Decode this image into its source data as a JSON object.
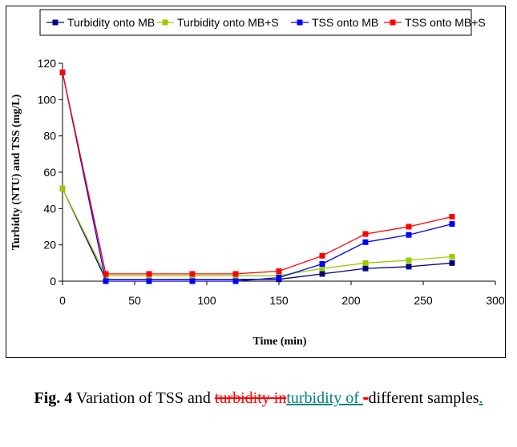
{
  "chart_data": {
    "type": "line",
    "title": "",
    "xlabel": "Time (min)",
    "ylabel": "Turbidty (NTU) and TSS (mg/L)",
    "xlim": [
      0,
      300
    ],
    "ylim": [
      0,
      120
    ],
    "xticks": [
      0,
      50,
      100,
      150,
      200,
      250,
      300
    ],
    "yticks": [
      0,
      20,
      40,
      60,
      80,
      100,
      120
    ],
    "grid": false,
    "legend_position": "top",
    "x": [
      0,
      30,
      60,
      90,
      120,
      150,
      180,
      210,
      240,
      270
    ],
    "series": [
      {
        "name": "Turbidity onto MB",
        "color": "#000080",
        "values": [
          51,
          1,
          1,
          1,
          1,
          1,
          4,
          7,
          8,
          10
        ]
      },
      {
        "name": "Turbidity onto MB+S",
        "color": "#99cc00",
        "values": [
          51,
          3,
          3,
          3,
          3,
          3,
          7,
          10,
          11.5,
          13.5
        ]
      },
      {
        "name": "TSS onto MB",
        "color": "#0000ff",
        "values": [
          115,
          0,
          0,
          0,
          0,
          2,
          9.5,
          21.5,
          25.5,
          31.5
        ]
      },
      {
        "name": "TSS onto MB+S",
        "color": "#ff0000",
        "values": [
          115,
          4,
          4,
          4,
          4,
          5.5,
          14,
          26,
          30,
          35.5
        ]
      }
    ]
  },
  "caption": {
    "fig_label": "Fig. 4",
    "text_before": " Variation of TSS and ",
    "deleted_text": "turbidity  in",
    "inserted_text": "turbidity of ",
    "deleted_dash": "-",
    "text_after": "different samples",
    "inserted_period": "."
  }
}
